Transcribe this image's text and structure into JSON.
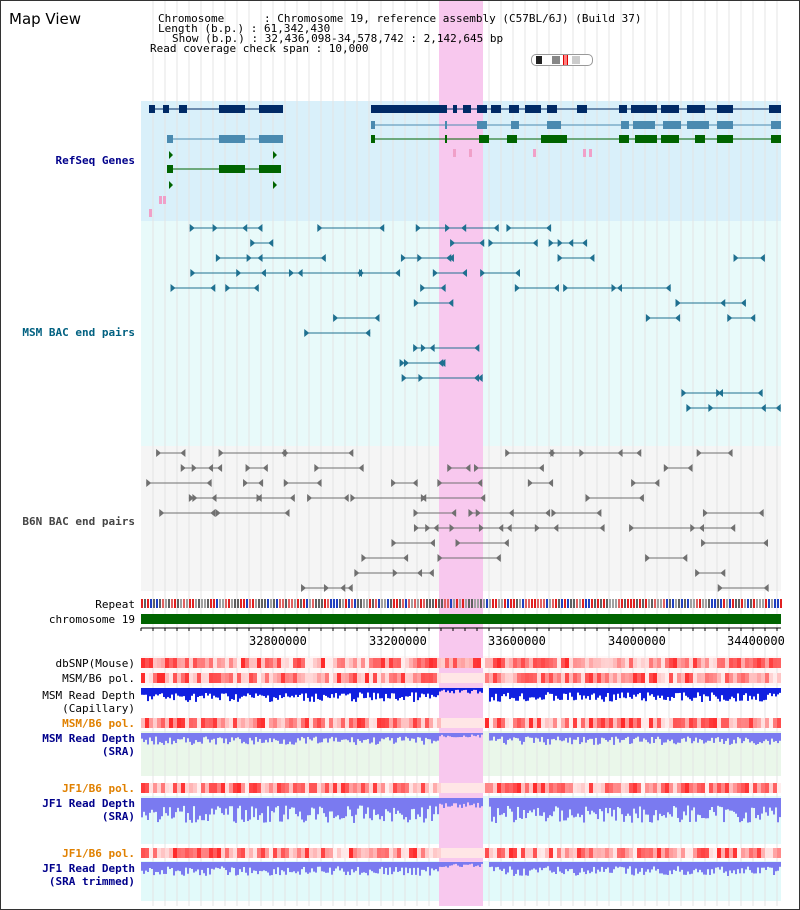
{
  "view": {
    "title": "Map View"
  },
  "info": {
    "line1": "Chromosome      : Chromosome 19, reference assembly (C57BL/6J) (Build 37)",
    "line2": "Length (b.p.) : 61,342,430",
    "line3": "Show (b.p.) : 32,436,098-34,578,742 : 2,142,645 bp",
    "line4": "Read coverage check span : 10,000"
  },
  "tracks": {
    "refseq": "RefSeq Genes",
    "msm_bac": "MSM BAC end pairs",
    "b6n_bac": "B6N BAC end pairs",
    "repeat": "Repeat",
    "chromosome": "chromosome 19",
    "dbsnp": "dbSNP(Mouse)",
    "msm_b6_pol_1": "MSM/B6 pol.",
    "msm_depth_cap": "MSM Read Depth\n(Capillary)",
    "msm_b6_pol_2": "MSM/B6 pol.",
    "msm_depth_sra": "MSM Read Depth\n(SRA)",
    "jf1_b6_pol_1": "JF1/B6 pol.",
    "jf1_depth_sra": "JF1 Read Depth\n(SRA)",
    "jf1_b6_pol_2": "JF1/B6 pol.",
    "jf1_depth_trim": "JF1 Read Depth\n(SRA trimmed)"
  },
  "ruler": {
    "ticks": [
      "32800000",
      "33200000",
      "33600000",
      "34000000",
      "34400000"
    ]
  },
  "colors": {
    "refseq_bg": "#d9f0fa",
    "bac_bg": "#e8fafa",
    "b6n_bg": "#f5f5f5",
    "highlight": "#f8c8ee",
    "chromosome": "#006400",
    "dark_gene": "#002a66",
    "mid_gene": "#4a8ab0",
    "green_gene": "#006400",
    "depth_dark": "#1020e0",
    "depth_light": "#7a7af0",
    "teal_pair": "#1f7090",
    "gray_pair": "#707070"
  }
}
